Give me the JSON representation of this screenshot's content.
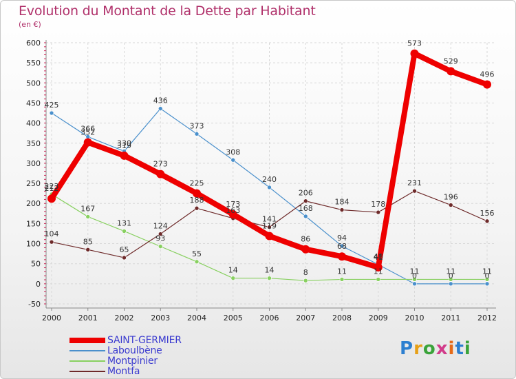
{
  "header": {
    "title": "Evolution du Montant de la Dette par Habitant",
    "subtitle": "(en €)"
  },
  "logo": {
    "text": "Proxiti"
  },
  "chart_data": {
    "type": "line",
    "title": "Evolution du Montant de la Dette par Habitant",
    "subtitle": "(en €)",
    "xlabel": "",
    "ylabel": "",
    "categories": [
      "2000",
      "2001",
      "2002",
      "2003",
      "2004",
      "2005",
      "2006",
      "2007",
      "2008",
      "2009",
      "2010",
      "2011",
      "2012"
    ],
    "ylim": [
      -50,
      600
    ],
    "yticks": [
      -50,
      0,
      50,
      100,
      150,
      200,
      250,
      300,
      350,
      400,
      450,
      500,
      550,
      600
    ],
    "ytick_labels": [
      "-50",
      "0",
      "50",
      "100",
      "150",
      "200",
      "250",
      "300",
      "350",
      "400",
      "450",
      "500",
      "550",
      "600"
    ],
    "grid": true,
    "legend_position": "bottom-left",
    "series": [
      {
        "name": "Laboulbène",
        "color": "#4a90cc",
        "width": 1.2,
        "marker": 3,
        "values": [
          425,
          366,
          330,
          436,
          373,
          308,
          240,
          168,
          94,
          48,
          0,
          0,
          0
        ],
        "labels": [
          "425",
          "366",
          "330",
          "436",
          "373",
          "308",
          "240",
          "168",
          "94",
          "48",
          "0",
          "0",
          "0"
        ]
      },
      {
        "name": "Montpinier",
        "color": "#88d060",
        "width": 1.2,
        "marker": 3,
        "values": [
          223,
          167,
          131,
          93,
          55,
          14,
          14,
          8,
          11,
          11,
          11,
          11,
          11
        ],
        "labels": [
          "223",
          "167",
          "131",
          "93",
          "55",
          "14",
          "14",
          "8",
          "11",
          "11",
          "11",
          "11",
          "11"
        ]
      },
      {
        "name": "Montfa",
        "color": "#6e2a2a",
        "width": 1.2,
        "marker": 3,
        "values": [
          104,
          85,
          65,
          124,
          188,
          163,
          141,
          206,
          184,
          178,
          231,
          196,
          156
        ],
        "labels": [
          "104",
          "85",
          "65",
          "124",
          "188",
          "163",
          "141",
          "206",
          "184",
          "178",
          "231",
          "196",
          "156"
        ]
      },
      {
        "name": "SAINT-GERMIER",
        "color": "#ee0000",
        "width": 8,
        "marker": 6,
        "values": [
          212,
          352,
          319,
          273,
          225,
          173,
          119,
          86,
          68,
          41,
          573,
          529,
          496
        ],
        "labels": [
          "212",
          "352",
          "319",
          "273",
          "225",
          "173",
          "119",
          "86",
          "68",
          "41",
          "573",
          "529",
          "496"
        ]
      }
    ],
    "legend": [
      "SAINT-GERMIER",
      "Laboulbène",
      "Montpinier",
      "Montfa"
    ]
  }
}
